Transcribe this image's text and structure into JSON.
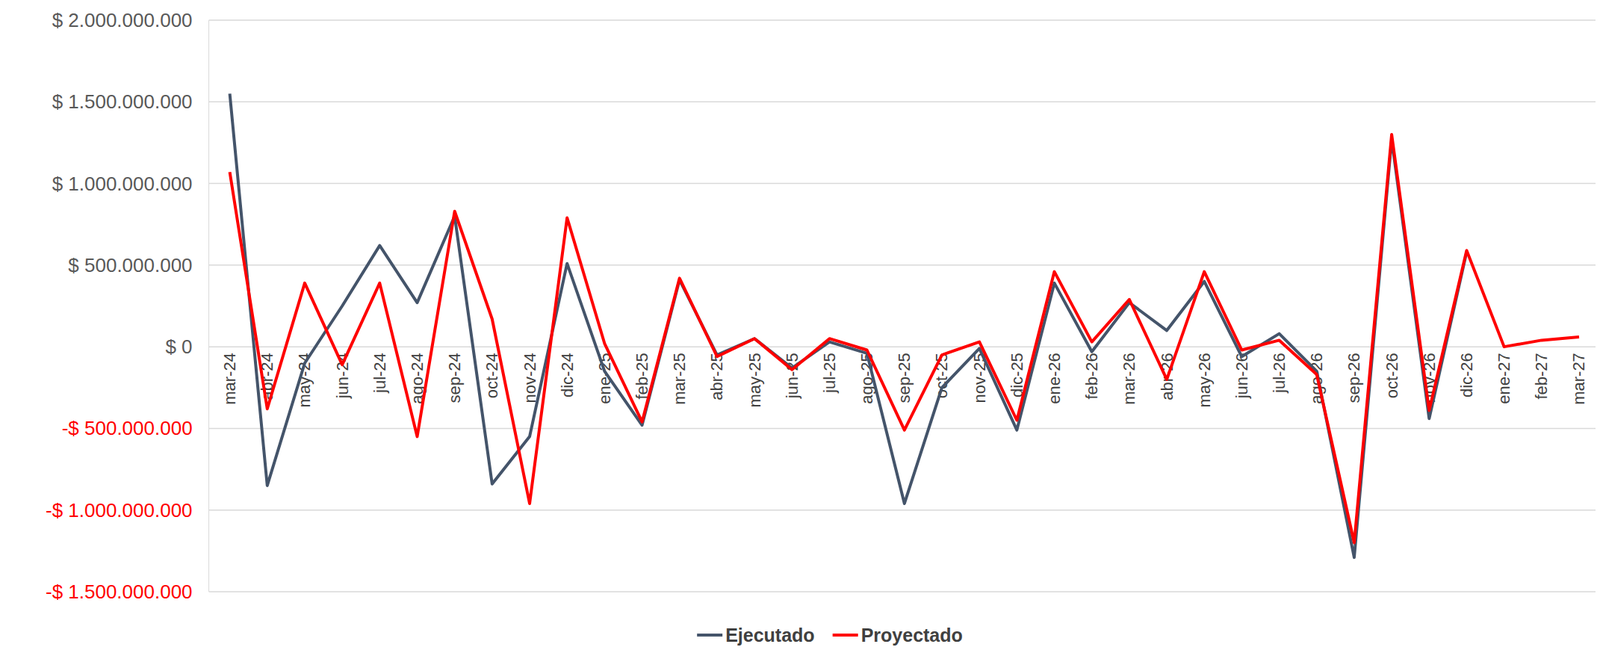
{
  "chart_data": {
    "type": "line",
    "categories": [
      "mar-24",
      "abr-24",
      "may-24",
      "jun-24",
      "jul-24",
      "ago-24",
      "sep-24",
      "oct-24",
      "nov-24",
      "dic-24",
      "ene-25",
      "feb-25",
      "mar-25",
      "abr-25",
      "may-25",
      "jun-25",
      "jul-25",
      "ago-25",
      "sep-25",
      "oct-25",
      "nov-25",
      "dic-25",
      "ene-26",
      "feb-26",
      "mar-26",
      "abr-26",
      "may-26",
      "jun-26",
      "jul-26",
      "ago-26",
      "sep-26",
      "oct-26",
      "nov-26",
      "dic-26",
      "ene-27",
      "feb-27",
      "mar-27"
    ],
    "series": [
      {
        "name": "Ejecutado",
        "color": "#44546a",
        "values": [
          1550000000,
          -850000000,
          -100000000,
          250000000,
          620000000,
          270000000,
          800000000,
          -840000000,
          -550000000,
          510000000,
          -150000000,
          -480000000,
          410000000,
          -50000000,
          50000000,
          -130000000,
          30000000,
          -40000000,
          -960000000,
          -250000000,
          -10000000,
          -510000000,
          390000000,
          -30000000,
          270000000,
          100000000,
          400000000,
          -60000000,
          80000000,
          -150000000,
          -1290000000,
          1270000000,
          -440000000,
          580000000,
          null,
          null,
          null
        ]
      },
      {
        "name": "Proyectado",
        "color": "#ff0000",
        "values": [
          1070000000,
          -380000000,
          390000000,
          -110000000,
          390000000,
          -550000000,
          830000000,
          170000000,
          -960000000,
          790000000,
          20000000,
          -460000000,
          420000000,
          -60000000,
          50000000,
          -140000000,
          50000000,
          -20000000,
          -510000000,
          -50000000,
          30000000,
          -450000000,
          460000000,
          30000000,
          290000000,
          -200000000,
          460000000,
          -20000000,
          40000000,
          -170000000,
          -1200000000,
          1300000000,
          -390000000,
          590000000,
          0,
          40000000,
          60000000
        ]
      }
    ],
    "ylim": [
      -1500000000,
      2000000000
    ],
    "yticks": [
      {
        "value": -1500000000,
        "label": "-$ 1.500.000.000"
      },
      {
        "value": -1000000000,
        "label": "-$ 1.000.000.000"
      },
      {
        "value": -500000000,
        "label": "-$ 500.000.000"
      },
      {
        "value": 0,
        "label": "$ 0"
      },
      {
        "value": 500000000,
        "label": "$ 500.000.000"
      },
      {
        "value": 1000000000,
        "label": "$ 1.000.000.000"
      },
      {
        "value": 1500000000,
        "label": "$ 1.500.000.000"
      },
      {
        "value": 2000000000,
        "label": "$ 2.000.000.000"
      }
    ],
    "grid": true,
    "legend": "bottom"
  }
}
